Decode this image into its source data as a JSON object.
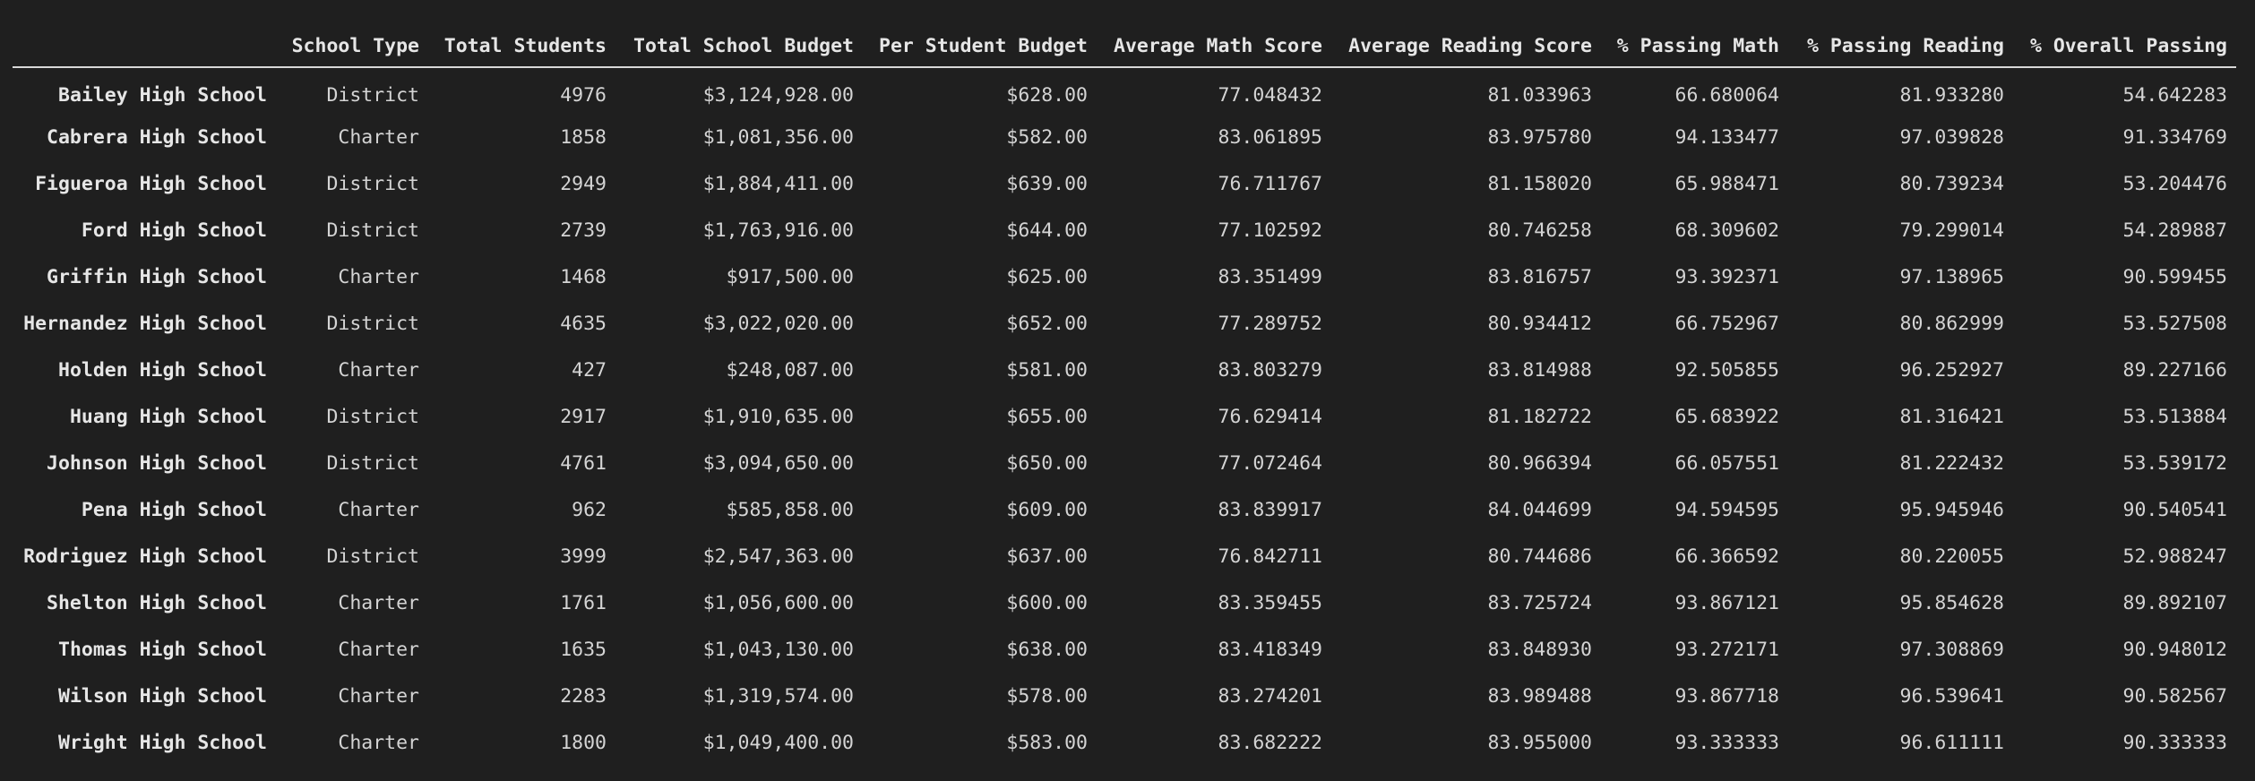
{
  "table": {
    "columns": [
      "",
      "School Type",
      "Total Students",
      "Total School Budget",
      "Per Student Budget",
      "Average Math Score",
      "Average Reading Score",
      "% Passing Math",
      "% Passing Reading",
      "% Overall Passing"
    ],
    "rows": [
      {
        "name": "Bailey High School",
        "cells": [
          "District",
          "4976",
          "$3,124,928.00",
          "$628.00",
          "77.048432",
          "81.033963",
          "66.680064",
          "81.933280",
          "54.642283"
        ]
      },
      {
        "name": "Cabrera High School",
        "cells": [
          "Charter",
          "1858",
          "$1,081,356.00",
          "$582.00",
          "83.061895",
          "83.975780",
          "94.133477",
          "97.039828",
          "91.334769"
        ]
      },
      {
        "name": "Figueroa High School",
        "cells": [
          "District",
          "2949",
          "$1,884,411.00",
          "$639.00",
          "76.711767",
          "81.158020",
          "65.988471",
          "80.739234",
          "53.204476"
        ]
      },
      {
        "name": "Ford High School",
        "cells": [
          "District",
          "2739",
          "$1,763,916.00",
          "$644.00",
          "77.102592",
          "80.746258",
          "68.309602",
          "79.299014",
          "54.289887"
        ]
      },
      {
        "name": "Griffin High School",
        "cells": [
          "Charter",
          "1468",
          "$917,500.00",
          "$625.00",
          "83.351499",
          "83.816757",
          "93.392371",
          "97.138965",
          "90.599455"
        ]
      },
      {
        "name": "Hernandez High School",
        "cells": [
          "District",
          "4635",
          "$3,022,020.00",
          "$652.00",
          "77.289752",
          "80.934412",
          "66.752967",
          "80.862999",
          "53.527508"
        ]
      },
      {
        "name": "Holden High School",
        "cells": [
          "Charter",
          "427",
          "$248,087.00",
          "$581.00",
          "83.803279",
          "83.814988",
          "92.505855",
          "96.252927",
          "89.227166"
        ]
      },
      {
        "name": "Huang High School",
        "cells": [
          "District",
          "2917",
          "$1,910,635.00",
          "$655.00",
          "76.629414",
          "81.182722",
          "65.683922",
          "81.316421",
          "53.513884"
        ]
      },
      {
        "name": "Johnson High School",
        "cells": [
          "District",
          "4761",
          "$3,094,650.00",
          "$650.00",
          "77.072464",
          "80.966394",
          "66.057551",
          "81.222432",
          "53.539172"
        ]
      },
      {
        "name": "Pena High School",
        "cells": [
          "Charter",
          "962",
          "$585,858.00",
          "$609.00",
          "83.839917",
          "84.044699",
          "94.594595",
          "95.945946",
          "90.540541"
        ]
      },
      {
        "name": "Rodriguez High School",
        "cells": [
          "District",
          "3999",
          "$2,547,363.00",
          "$637.00",
          "76.842711",
          "80.744686",
          "66.366592",
          "80.220055",
          "52.988247"
        ]
      },
      {
        "name": "Shelton High School",
        "cells": [
          "Charter",
          "1761",
          "$1,056,600.00",
          "$600.00",
          "83.359455",
          "83.725724",
          "93.867121",
          "95.854628",
          "89.892107"
        ]
      },
      {
        "name": "Thomas High School",
        "cells": [
          "Charter",
          "1635",
          "$1,043,130.00",
          "$638.00",
          "83.418349",
          "83.848930",
          "93.272171",
          "97.308869",
          "90.948012"
        ]
      },
      {
        "name": "Wilson High School",
        "cells": [
          "Charter",
          "2283",
          "$1,319,574.00",
          "$578.00",
          "83.274201",
          "83.989488",
          "93.867718",
          "96.539641",
          "90.582567"
        ]
      },
      {
        "name": "Wright High School",
        "cells": [
          "Charter",
          "1800",
          "$1,049,400.00",
          "$583.00",
          "83.682222",
          "83.955000",
          "93.333333",
          "96.611111",
          "90.333333"
        ]
      }
    ]
  }
}
